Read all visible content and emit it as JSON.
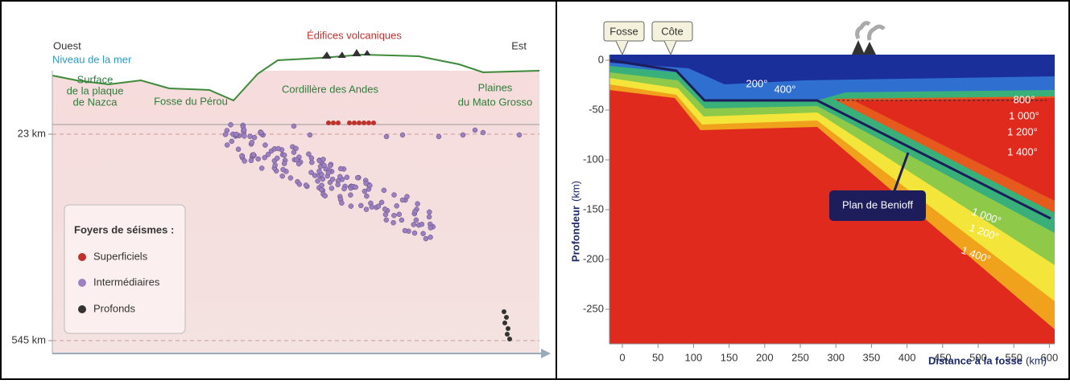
{
  "left": {
    "west": "Ouest",
    "east": "Est",
    "sea_level": "Niveau de la mer",
    "volcanic": "Édifices volcaniques",
    "nazca": [
      "Surface",
      "de la plaque",
      "de Nazca"
    ],
    "trench": "Fosse du Pérou",
    "andes": "Cordillère des Andes",
    "plains": [
      "Plaines",
      "du Mato Grosso"
    ],
    "depths": [
      "23 km",
      "545 km"
    ],
    "legend": {
      "title": "Foyers de séismes :",
      "items": [
        "Superficiels",
        "Intermédiaires",
        "Profonds"
      ]
    }
  },
  "right": {
    "boxes": [
      "Fosse",
      "Côte"
    ],
    "y_title": "Profondeur",
    "x_title": "Distance à la fosse",
    "unit": "(km)",
    "yticks": [
      "0",
      "-50",
      "-100",
      "-150",
      "-200",
      "-250"
    ],
    "xticks": [
      "0",
      "50",
      "100",
      "150",
      "200",
      "250",
      "300",
      "350",
      "400",
      "450",
      "500",
      "550",
      "600"
    ],
    "temps": [
      "200°",
      "400°",
      "800°",
      "1 000°",
      "1 200°",
      "1 400°",
      "1 000°",
      "1 200°",
      "1 400°"
    ],
    "benioff": "Plan de Benioff"
  }
}
